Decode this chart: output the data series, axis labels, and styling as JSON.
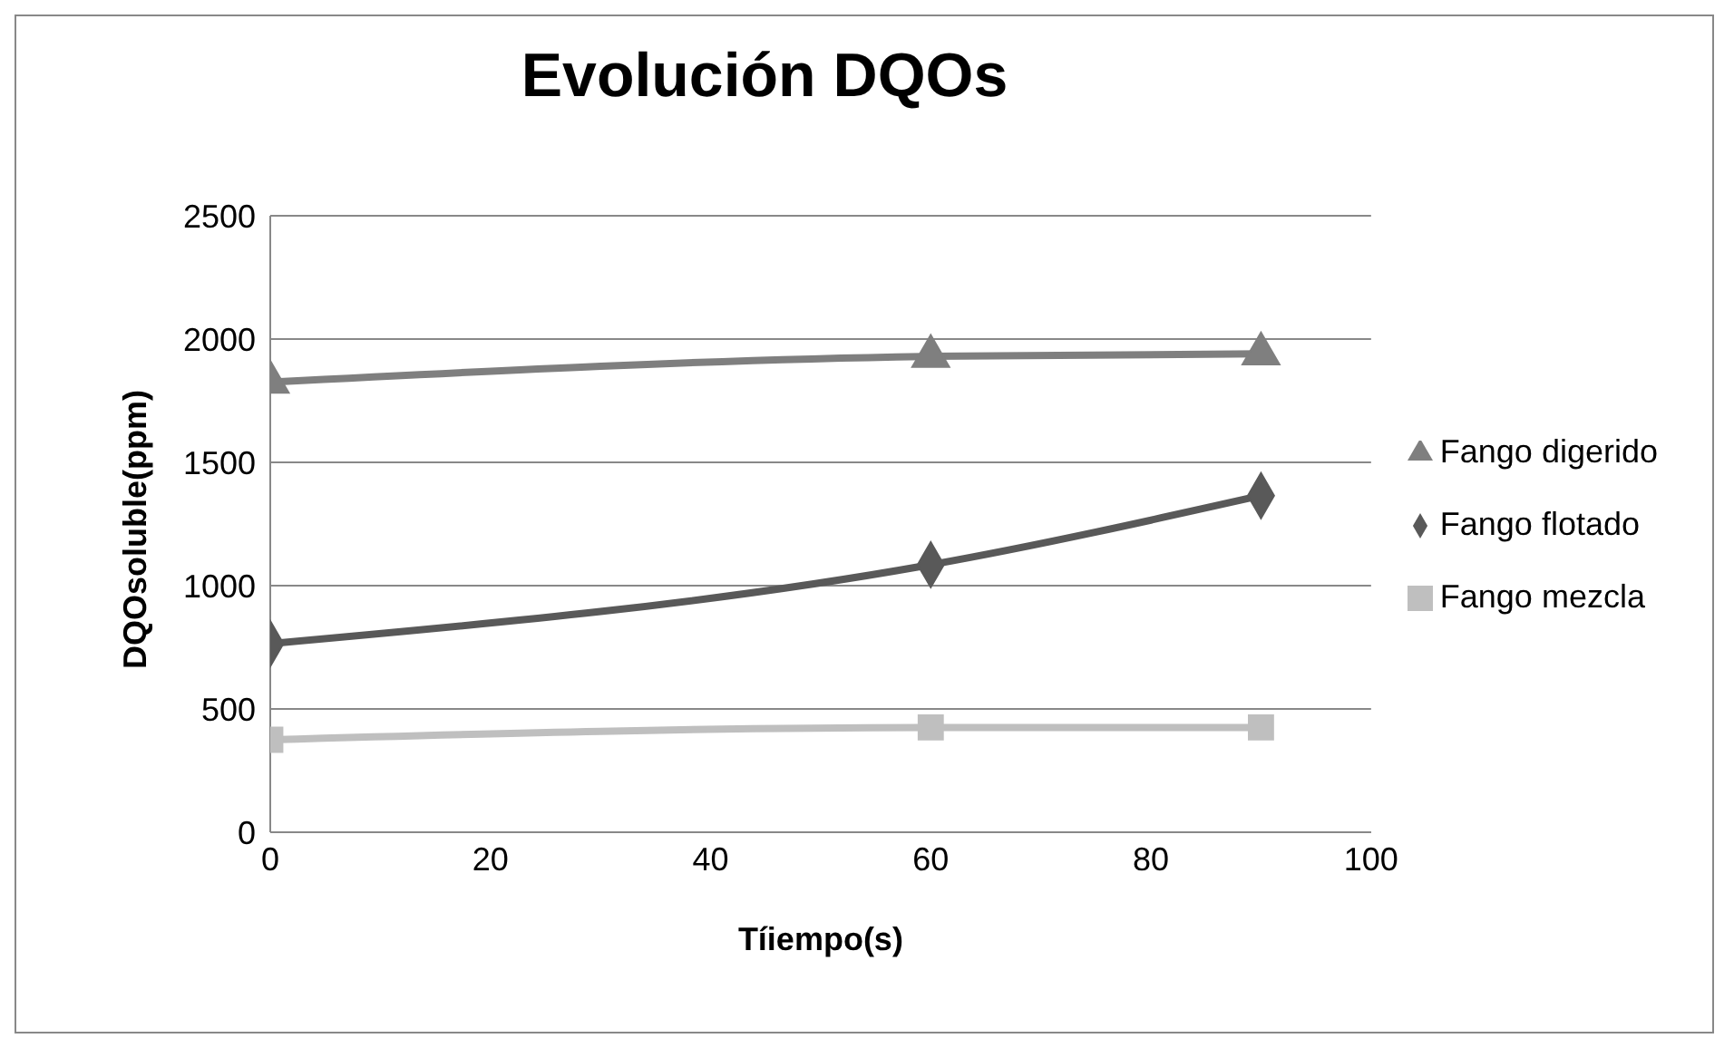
{
  "chart_data": {
    "type": "line",
    "title": "Evolución DQOs",
    "xlabel": "Tíiempo(s)",
    "ylabel": "DQOsoluble(ppm)",
    "x": [
      0,
      60,
      90
    ],
    "series": [
      {
        "name": "Fango flotado",
        "color": "#595959",
        "marker": "diamond",
        "values": [
          765,
          1085,
          1365
        ]
      },
      {
        "name": "Fango mezcla",
        "color": "#bfbfbf",
        "marker": "square",
        "values": [
          375,
          425,
          425
        ]
      },
      {
        "name": "Fango digerido",
        "color": "#7f7f7f",
        "marker": "triangle",
        "values": [
          1825,
          1930,
          1940
        ]
      }
    ],
    "xlim": [
      0,
      100
    ],
    "xticks": [
      0,
      20,
      40,
      60,
      80,
      100
    ],
    "ylim": [
      0,
      2500
    ],
    "yticks": [
      0,
      500,
      1000,
      1500,
      2000,
      2500
    ],
    "grid": "y",
    "legend": "right",
    "line_style": "solid"
  }
}
